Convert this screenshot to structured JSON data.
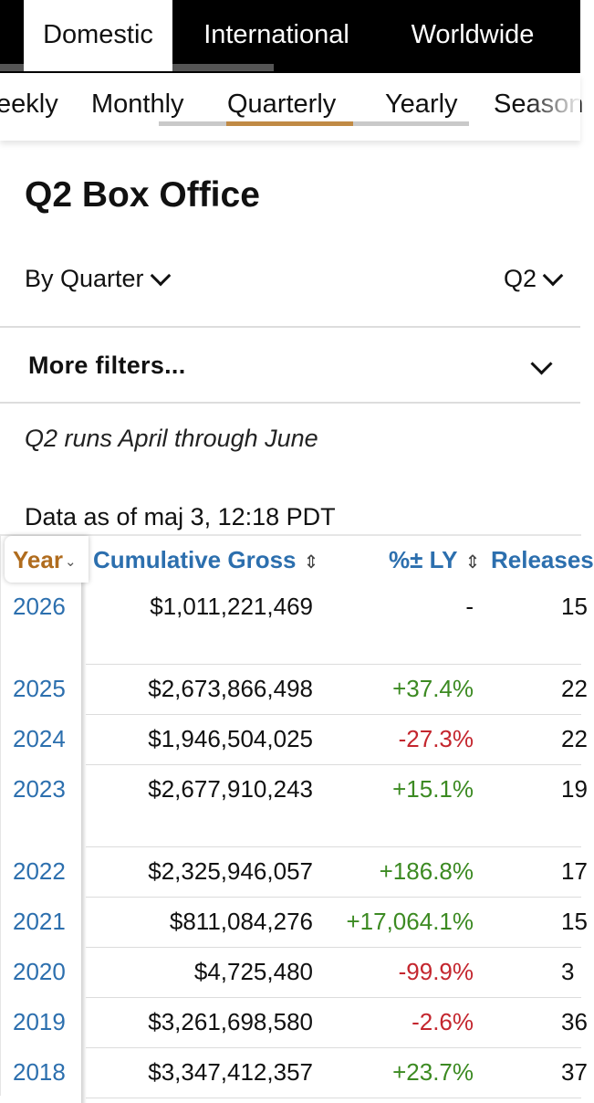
{
  "region_tabs": [
    {
      "label": "Domestic",
      "active": true
    },
    {
      "label": "International",
      "active": false
    },
    {
      "label": "Worldwide",
      "active": false
    }
  ],
  "period_tabs": [
    {
      "label": "eekly",
      "active": false
    },
    {
      "label": "Monthly",
      "active": false
    },
    {
      "label": "Quarterly",
      "active": true
    },
    {
      "label": "Yearly",
      "active": false
    },
    {
      "label": "Season",
      "active": false
    }
  ],
  "page": {
    "title": "Q2 Box Office",
    "by_quarter_label": "By Quarter",
    "quarter_select": "Q2",
    "more_filters_label": "More filters...",
    "note": "Q2 runs April through June",
    "data_as_of": "Data as of maj 3, 12:18 PDT"
  },
  "table": {
    "headers": {
      "year": "Year",
      "gross": "Cumulative Gross",
      "pct": "%± LY",
      "releases": "Releases"
    },
    "rows": [
      {
        "year": "2026",
        "gross": "$1,011,221,469",
        "pct": "-",
        "pct_type": "nil",
        "releases": "15"
      },
      {
        "year": "2025",
        "gross": "$2,673,866,498",
        "pct": "+37.4%",
        "pct_type": "pos",
        "releases": "22"
      },
      {
        "year": "2024",
        "gross": "$1,946,504,025",
        "pct": "-27.3%",
        "pct_type": "neg",
        "releases": "22"
      },
      {
        "year": "2023",
        "gross": "$2,677,910,243",
        "pct": "+15.1%",
        "pct_type": "pos",
        "releases": "19"
      },
      {
        "year": "2022",
        "gross": "$2,325,946,057",
        "pct": "+186.8%",
        "pct_type": "pos",
        "releases": "17"
      },
      {
        "year": "2021",
        "gross": "$811,084,276",
        "pct": "+17,064.1%",
        "pct_type": "pos",
        "releases": "15"
      },
      {
        "year": "2020",
        "gross": "$4,725,480",
        "pct": "-99.9%",
        "pct_type": "neg",
        "releases": "3"
      },
      {
        "year": "2019",
        "gross": "$3,261,698,580",
        "pct": "-2.6%",
        "pct_type": "neg",
        "releases": "36"
      },
      {
        "year": "2018",
        "gross": "$3,347,412,357",
        "pct": "+23.7%",
        "pct_type": "pos",
        "releases": "37"
      }
    ]
  },
  "colors": {
    "link_blue": "#2c6fae",
    "sort_orange": "#b06c1e",
    "positive": "#3c8a22",
    "negative": "#c4262e",
    "tab_accent": "#c08a45"
  }
}
